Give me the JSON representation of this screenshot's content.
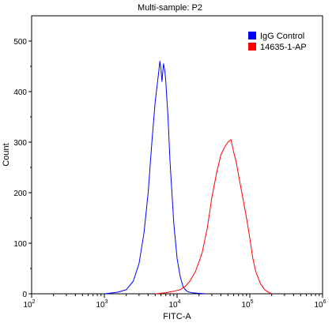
{
  "chart_data": {
    "type": "line",
    "title": "Multi-sample: P2",
    "xlabel": "FITC-A",
    "ylabel": "Count",
    "x_scale": "log",
    "xlim": [
      100,
      1000000
    ],
    "ylim": [
      0,
      550
    ],
    "x_ticks": [
      {
        "value": 100,
        "base": "10",
        "exp": "2"
      },
      {
        "value": 1000,
        "base": "10",
        "exp": "3"
      },
      {
        "value": 10000,
        "base": "10",
        "exp": "4"
      },
      {
        "value": 100000,
        "base": "10",
        "exp": "5"
      },
      {
        "value": 1000000,
        "base": "10",
        "exp": "6"
      }
    ],
    "y_ticks": [
      0,
      100,
      200,
      300,
      400,
      500
    ],
    "legend_position": "top-right",
    "grid": false,
    "series": [
      {
        "name": "IgG Control",
        "color": "#0000ff",
        "x": [
          1000,
          1500,
          2000,
          2500,
          3000,
          3500,
          4000,
          4500,
          5000,
          5500,
          5800,
          6000,
          6200,
          6500,
          6800,
          7000,
          7500,
          8000,
          9000,
          10000,
          11000,
          12000,
          13000,
          14000,
          16000,
          20000,
          25000
        ],
        "y": [
          0,
          3,
          8,
          25,
          60,
          120,
          200,
          300,
          380,
          430,
          460,
          445,
          420,
          455,
          440,
          420,
          350,
          260,
          140,
          70,
          35,
          15,
          8,
          4,
          2,
          1,
          0
        ]
      },
      {
        "name": "14635-1-AP",
        "color": "#ff0000",
        "x": [
          5000,
          7000,
          9000,
          11000,
          13000,
          15000,
          18000,
          22000,
          26000,
          30000,
          35000,
          40000,
          45000,
          50000,
          55000,
          60000,
          65000,
          70000,
          80000,
          90000,
          100000,
          110000,
          120000,
          140000,
          160000,
          180000,
          200000
        ],
        "y": [
          0,
          2,
          5,
          8,
          15,
          25,
          45,
          80,
          130,
          190,
          240,
          275,
          290,
          300,
          305,
          280,
          260,
          235,
          190,
          150,
          110,
          70,
          45,
          20,
          8,
          3,
          0
        ]
      }
    ]
  }
}
